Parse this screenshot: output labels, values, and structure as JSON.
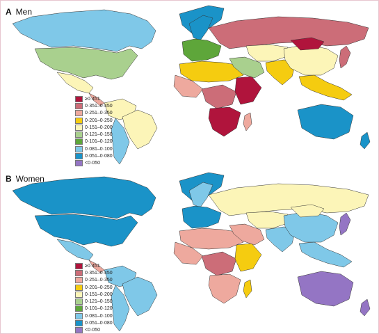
{
  "panels": [
    {
      "letter": "A",
      "title": "Men"
    },
    {
      "letter": "B",
      "title": "Women"
    }
  ],
  "legend": [
    {
      "label": "≥0·451",
      "color": "#b0143c"
    },
    {
      "label": "0·351–0·450",
      "color": "#cc6d78"
    },
    {
      "label": "0·251–0·350",
      "color": "#eea99e"
    },
    {
      "label": "0·201–0·250",
      "color": "#f5cc10"
    },
    {
      "label": "0·151–0·200",
      "color": "#fcf5b8"
    },
    {
      "label": "0·121–0·150",
      "color": "#a9d08e"
    },
    {
      "label": "0·101–0·120",
      "color": "#5ea63a"
    },
    {
      "label": "0·081–0·100",
      "color": "#7fc8e8"
    },
    {
      "label": "0·051–0·080",
      "color": "#1a93c8"
    },
    {
      "label": "<0·050",
      "color": "#9475c4"
    }
  ],
  "map_men": {
    "canada": 7,
    "usa": 5,
    "mexico": 4,
    "central_america": 2,
    "south_america_north": 4,
    "brazil": 4,
    "southern_cone": 7,
    "greenland": 8,
    "europe_west": 6,
    "scandinavia": 8,
    "russia": 1,
    "north_africa": 3,
    "west_africa": 2,
    "central_africa": 1,
    "east_africa": 0,
    "southern_africa": 0,
    "madagascar": 2,
    "middle_east": 5,
    "central_asia": 4,
    "south_asia": 3,
    "china": 4,
    "mongolia": 0,
    "southeast_asia": 3,
    "japan": 1,
    "australia": 8,
    "new_zealand": 8
  },
  "map_women": {
    "canada": 8,
    "usa": 8,
    "mexico": 7,
    "central_america": 2,
    "south_america_north": 7,
    "brazil": 7,
    "southern_cone": 7,
    "greenland": 8,
    "europe_west": 8,
    "scandinavia": 7,
    "russia": 4,
    "north_africa": 2,
    "west_africa": 2,
    "central_africa": 1,
    "east_africa": 3,
    "southern_africa": 2,
    "madagascar": 3,
    "middle_east": 2,
    "central_asia": 4,
    "south_asia": 7,
    "china": 7,
    "mongolia": 4,
    "southeast_asia": 7,
    "japan": 9,
    "australia": 9,
    "new_zealand": 9
  }
}
